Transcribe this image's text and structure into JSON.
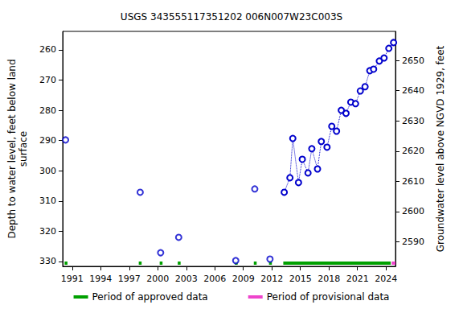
{
  "chart_data": {
    "type": "scatter",
    "title": "USGS 343555117351202 006N007W23C003S",
    "y_label": "Depth to water level, feet below land\nsurface",
    "y2_label": "Groundwater level above NGVD 1929, feet",
    "xlim": [
      1990.0,
      2025.0
    ],
    "xticks": [
      1991,
      1994,
      1997,
      2000,
      2003,
      2006,
      2009,
      2012,
      2015,
      2018,
      2021,
      2024
    ],
    "ylim": [
      253.9,
      331.6
    ],
    "yticks": [
      260,
      270,
      280,
      290,
      300,
      310,
      320,
      330
    ],
    "y2lim": [
      2581.9,
      2659.6
    ],
    "y2ticks": [
      2590,
      2600,
      2610,
      2620,
      2630,
      2640,
      2650
    ],
    "grid": false,
    "legend": "bottom",
    "series": [
      {
        "x": [
          1990.3,
          1998.15,
          2000.3,
          2002.2,
          2008.2,
          2010.2,
          2011.8
        ],
        "values": [
          289.8,
          307.1,
          327.1,
          322.0,
          329.7,
          306.0,
          329.2
        ],
        "color": "#0000cc",
        "marker": "circle",
        "line_style": "none"
      },
      {
        "x": [
          2013.3,
          2013.9,
          2014.2,
          2014.8,
          2015.2,
          2015.8,
          2016.2,
          2016.8,
          2017.2,
          2017.8,
          2018.3,
          2018.8,
          2019.3,
          2019.8,
          2020.3,
          2020.8,
          2021.3,
          2021.8,
          2022.3,
          2022.7,
          2023.3,
          2023.8,
          2024.3,
          2024.8
        ],
        "values": [
          307.1,
          302.3,
          289.3,
          303.9,
          296.2,
          300.7,
          292.7,
          299.4,
          290.3,
          292.2,
          285.3,
          286.9,
          280.0,
          281.0,
          277.3,
          277.8,
          273.6,
          272.2,
          266.9,
          266.4,
          263.7,
          262.7,
          259.5,
          257.6
        ],
        "color": "#0000cc",
        "marker": "circle",
        "line_style": "dotted"
      }
    ],
    "periods": [
      {
        "name": "Period of approved data",
        "color": "#00a000",
        "ranges": [
          [
            1990.2,
            1990.5
          ],
          [
            1998.0,
            1998.3
          ],
          [
            2000.2,
            2000.5
          ],
          [
            2002.1,
            2002.4
          ],
          [
            2008.1,
            2008.4
          ],
          [
            2010.1,
            2010.4
          ],
          [
            2011.7,
            2012.0
          ],
          [
            2013.2,
            2024.5
          ]
        ]
      },
      {
        "name": "Period of provisional data",
        "color": "#ee44cc",
        "ranges": [
          [
            2024.6,
            2025.0
          ]
        ]
      }
    ]
  }
}
